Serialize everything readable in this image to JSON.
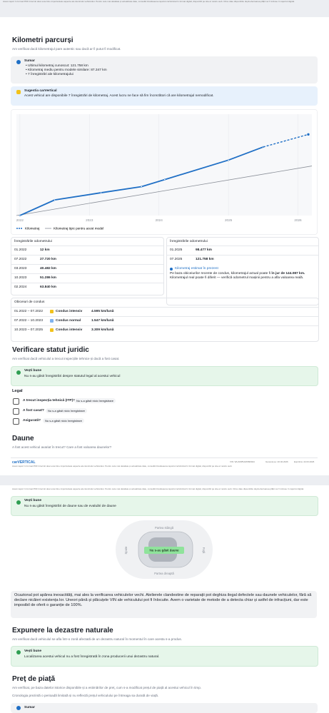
{
  "header_note": "Acest raport în format PDF întocmit doar este bine importantele aspecte ale istoricului vehiculului. Pentru cele mai detaliate și actualizate date, consultă întotdeauna raportul carVertical în format digital, disponibil pe site-ul nostru web. Orice date disponibile după efectuarea plății vor fi incluse în raportul digital.",
  "mileage": {
    "title": "Kilometri parcurși",
    "subtitle": "Am verificat dacă kilometrajul pare autentic sau dacă ar fi putut fi modificat.",
    "summary": {
      "title": "Sumar",
      "items": [
        "Ultimul kilometraj cunoscut: 121.758 km",
        "Kilometraj mediu pentru modele similare: 87.347 km",
        "7 înregistrări ale kilometrajului"
      ]
    },
    "suggestion": {
      "title": "Sugestia carVertical",
      "text": "Acest vehicul are disponibile 7 înregistrări de kilometraj. Acest lucru ne face să fim încrezători că are kilometrajul nemodificat."
    },
    "chart": {
      "xticks": [
        2022,
        2023,
        2024,
        2025,
        2026
      ],
      "xlim": [
        2021.95,
        2026.2
      ],
      "ylim": [
        0,
        180000
      ],
      "line_color": "#1f6fc5",
      "typical_color": "#8a8f98",
      "typical": [
        0,
        88000
      ],
      "legend": [
        "Kilometraj",
        "Kilometraj tipic pentru acest model"
      ]
    },
    "records_left": {
      "title": "Înregistrările odometrului",
      "rows": [
        {
          "date": "01.2022",
          "km": 12,
          "label": "12 km"
        },
        {
          "date": "07.2022",
          "km": 27720,
          "label": "27.720 km"
        },
        {
          "date": "03.2023",
          "km": 40482,
          "label": "40.482 km"
        },
        {
          "date": "10.2023",
          "km": 51286,
          "label": "51.286 km"
        },
        {
          "date": "02.2024",
          "km": 63840,
          "label": "63.840 km"
        }
      ]
    },
    "records_right": {
      "title": "Înregistrările odometrului",
      "rows": [
        {
          "date": "01.2025",
          "km": 98477,
          "label": "98.477 km"
        },
        {
          "date": "07.2025",
          "km": 121758,
          "label": "121.758 km"
        }
      ]
    },
    "estimate": {
      "title": "Kilometraj estimat în prezent",
      "text_before": "Pe baza obiceiurilor recente de condus, kilometrajul actual poate fi ",
      "value_label": "în jur de 144.087 km.",
      "km": 144087,
      "text_after": " Kilometrajul real poate fi diferit — verifică odometrul mașinii pentru a afla valoarea reală."
    },
    "habits": {
      "title": "Obiceiuri de condus",
      "rows": [
        {
          "period": "01.2022 – 07.2022",
          "label": "Condus intensiv",
          "rate": "4.595 km/lună",
          "color": "#f2c21b"
        },
        {
          "period": "07.2022 – 10.2023",
          "label": "Condus normal",
          "rate": "1.547 km/lună",
          "color": "#7fb3ef"
        },
        {
          "period": "10.2023 – 07.2025",
          "label": "Condus intensiv",
          "rate": "3.309 km/lună",
          "color": "#f2c21b"
        }
      ]
    }
  },
  "legal": {
    "title": "Verificare statut juridic",
    "subtitle": "Am verificat dacă vehiculul a trecut inspecțiile tehnice și dacă a fost casat.",
    "good_news": {
      "title": "Vești bune",
      "text": "Nu s-au găsit înregistrări despre statutul legal al acestui vehicul"
    },
    "section": "Legal",
    "rows": [
      {
        "label": "A trecut inspecția tehnică (ITP)?",
        "status": "Nu s-a găsit nicio înregistrare"
      },
      {
        "label": "A fost casat?",
        "status": "Nu s-a găsit nicio înregistrare"
      },
      {
        "label": "Asigurată?",
        "status": "Nu s-a găsit nicio înregistrare"
      }
    ]
  },
  "damage": {
    "title": "Daune",
    "subtitle": "A fost acest vehicul avariat în trecut? Care a fost valoarea daunelor?",
    "good_news": {
      "title": "Vești bune",
      "text": "Nu s-au găsit înregistrări de daune sau de evaluări de daune"
    },
    "diagram": {
      "left": "Partea stângă",
      "right": "Partea dreaptă",
      "rear": "Spate",
      "front": "Față",
      "status": "Nu s-au găsit daune"
    },
    "disclaimer": "Ocazional pot apărea inexactități, mai ales la verificarea vehiculelor vechi. Atelierele clandestine de reparații pot deghiza ilegal defectele sau daunele vehiculelor, fără să declare nicăieri existența lor. Uneori până și plăcuțele VIN ale vehiculului pot fi înlocuite. Avem o varietate de metode de a detecta chiar și astfel de infracțiuni, dar este imposibil de oferit o garanție de 100%."
  },
  "footer": {
    "logo": "carVERTICAL",
    "vin": "VIN: WLZZZ8VAW999944",
    "generated": "Generat pe: 20.02.2026",
    "expires": "Expiră la: 22.03.2026",
    "note": "Acest raport în format PDF întocmit doar este bine importantele aspecte ale istoricului vehiculului. Pentru cele mai detaliate și actualizate date, consultă întotdeauna raportul carVertical în format digital, disponibil pe site-ul nostru web."
  },
  "disasters": {
    "title": "Expunere la dezastre naturale",
    "subtitle": "Am verificat dacă vehiculul se afla într-o zonă afectată de un dezastru natural în momentul în care acesta s-a produs.",
    "good_news": {
      "title": "Vești bune",
      "text": "Localizarea acestui vehicul nu a fost înregistrată în zona producerii unui dezastru natural."
    }
  },
  "price": {
    "title": "Preț de piață",
    "subtitle": "Am verificat, pe baza datelor istorice disponibile și a estimărilor de preț, cum s-a modificat prețul de piață al acestui vehicul în timp.",
    "note": "Cronologia prezintă o perioadă limitată și nu reflectă prețul vehiculului pe întreaga sa durată de viață.",
    "summary_title": "Sumar"
  }
}
